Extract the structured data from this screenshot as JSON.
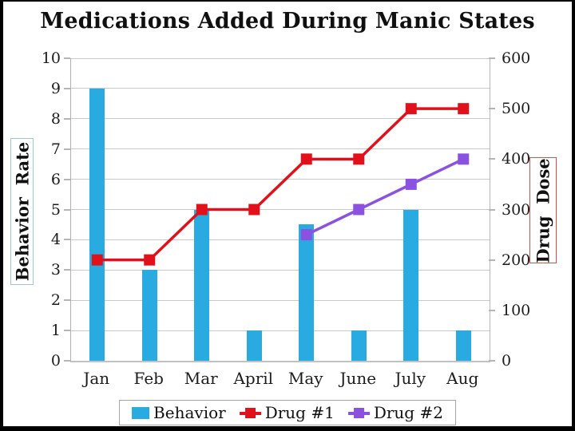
{
  "frame": {
    "border_color": "#000000",
    "background": "#FFFFFF"
  },
  "chart_data": {
    "type": "combo",
    "title": "Medications Added During Manic States",
    "categories": [
      "Jan",
      "Feb",
      "Mar",
      "April",
      "May",
      "June",
      "July",
      "Aug"
    ],
    "series": [
      {
        "name": "Behavior",
        "type": "bar",
        "axis": "left",
        "color": "#29ABE2",
        "values": [
          9,
          3,
          5,
          1,
          4.5,
          1,
          5,
          1
        ]
      },
      {
        "name": "Drug #1",
        "type": "line",
        "axis": "right",
        "color": "#E1101A",
        "marker": "square",
        "values": [
          200,
          200,
          300,
          300,
          400,
          400,
          500,
          500
        ]
      },
      {
        "name": "Drug #2",
        "type": "line",
        "axis": "right",
        "color": "#8B51E0",
        "marker": "square",
        "values": [
          null,
          null,
          null,
          null,
          250,
          300,
          350,
          400
        ]
      }
    ],
    "left_axis": {
      "label": "Behavior  Rate",
      "min": 0,
      "max": 10,
      "ticks": [
        0,
        1,
        2,
        3,
        4,
        5,
        6,
        7,
        8,
        9,
        10
      ],
      "box_border_color": "#9DC3E6"
    },
    "right_axis": {
      "label": "Drug  Dose",
      "min": 0,
      "max": 600,
      "ticks": [
        0,
        100,
        200,
        300,
        400,
        500,
        600
      ],
      "box_border_color": "#DD4B4B"
    },
    "grid": true,
    "legend": {
      "position": "bottom",
      "items": [
        "Behavior",
        "Drug #1",
        "Drug #2"
      ]
    }
  }
}
